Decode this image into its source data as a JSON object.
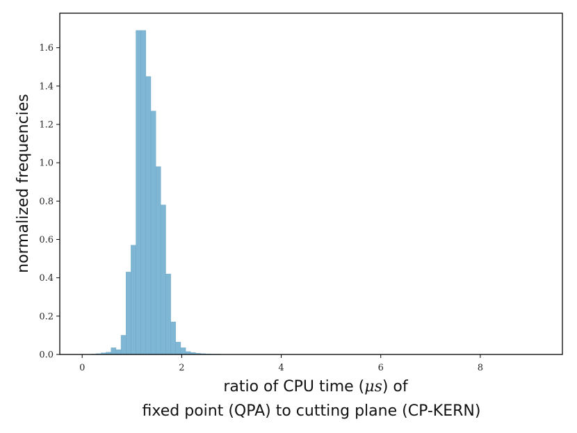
{
  "chart_data": {
    "type": "bar",
    "subtype": "histogram",
    "title": "",
    "xlabel": {
      "line1_before": "ratio of CPU time (",
      "line1_math": "μs",
      "line1_after": ") of",
      "line2": "fixed point (QPA) to cutting plane (CP-KERN)"
    },
    "ylabel": "normalized frequencies",
    "xlim": [
      -0.45,
      9.65
    ],
    "ylim": [
      0,
      1.78
    ],
    "xticks": [
      0,
      2,
      4,
      6,
      8
    ],
    "xtick_labels": [
      "0",
      "2",
      "4",
      "6",
      "8"
    ],
    "yticks": [
      0,
      0.2,
      0.4,
      0.6,
      0.8,
      1.0,
      1.2,
      1.4,
      1.6
    ],
    "ytick_labels": [
      "0.0",
      "0.2",
      "0.4",
      "0.6",
      "0.8",
      "1.0",
      "1.2",
      "1.4",
      "1.6"
    ],
    "grid": false,
    "bin_start": 0.08,
    "bin_width": 0.1,
    "values": [
      0.001,
      0.002,
      0.004,
      0.008,
      0.012,
      0.035,
      0.025,
      0.1,
      0.43,
      0.57,
      1.69,
      1.69,
      1.45,
      1.27,
      0.98,
      0.78,
      0.42,
      0.17,
      0.065,
      0.035,
      0.015,
      0.01,
      0.006,
      0.004,
      0.003,
      0.002,
      0.002,
      0.001,
      0.001,
      0.001,
      0.001
    ],
    "colors": {
      "bar": "#7fb6d4",
      "bar_edge": "#6aa6c6",
      "axis": "#000000"
    }
  }
}
